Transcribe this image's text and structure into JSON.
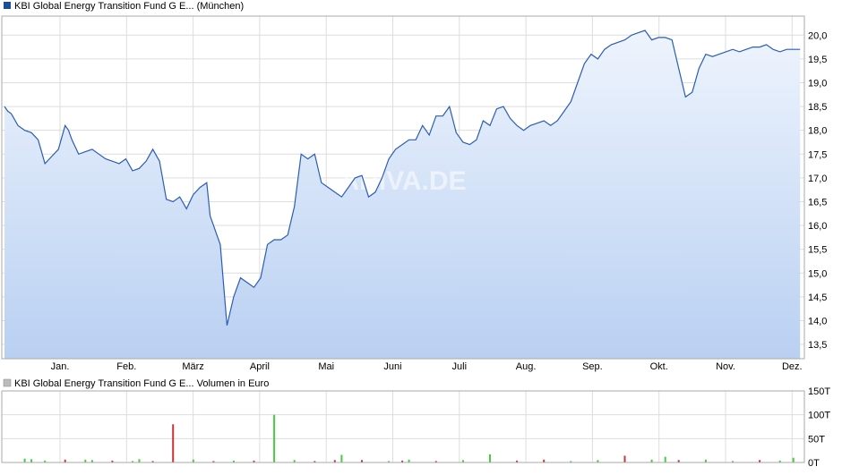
{
  "price_panel": {
    "legend_text": "KBI Global Energy Transition Fund G E... (München)",
    "legend_color": "#1f4e99",
    "watermark": "ARIVA.DE"
  },
  "volume_panel": {
    "legend_text": "KBI Global Energy Transition Fund G E... Volumen in Euro",
    "legend_color": "#bbbbbb"
  },
  "colors": {
    "line": "#2b5db5",
    "fill_top": "#eef4fd",
    "fill_bottom": "#b9d0f2",
    "grid": "#dddddd",
    "up": "#44cc44",
    "down": "#cc3333"
  },
  "chart_data": [
    {
      "type": "line",
      "x_tick_labels": [
        "Jan.",
        "Feb.",
        "März",
        "April",
        "Mai",
        "Juni",
        "Juli",
        "Aug.",
        "Sep.",
        "Okt.",
        "Nov.",
        "Dez."
      ],
      "y_tick_labels": [
        "13,5",
        "14,0",
        "14,5",
        "15,0",
        "15,5",
        "16,0",
        "16,5",
        "17,0",
        "17,5",
        "18,0",
        "18,5",
        "19,0",
        "19,5",
        "20,0"
      ],
      "ylim": [
        13.2,
        20.4
      ],
      "xlim_months": [
        0,
        11.85
      ],
      "grid": true,
      "legend": "top-left",
      "series": [
        {
          "x": [
            0.0,
            0.05,
            0.1,
            0.2,
            0.3,
            0.4,
            0.5,
            0.6,
            0.7,
            0.8,
            0.9,
            0.95,
            1.0,
            1.1,
            1.2,
            1.3,
            1.4,
            1.5,
            1.6,
            1.7,
            1.8,
            1.9,
            2.0,
            2.1,
            2.2,
            2.3,
            2.4,
            2.5,
            2.6,
            2.7,
            2.8,
            2.9,
            3.0,
            3.05,
            3.1,
            3.15,
            3.2,
            3.3,
            3.4,
            3.5,
            3.6,
            3.7,
            3.8,
            3.9,
            4.0,
            4.1,
            4.2,
            4.3,
            4.4,
            4.5,
            4.6,
            4.7,
            4.8,
            4.9,
            5.0,
            5.1,
            5.2,
            5.3,
            5.4,
            5.5,
            5.6,
            5.7,
            5.8,
            5.9,
            6.0,
            6.1,
            6.2,
            6.3,
            6.4,
            6.5,
            6.6,
            6.7,
            6.8,
            6.9,
            7.0,
            7.1,
            7.2,
            7.3,
            7.4,
            7.5,
            7.6,
            7.7,
            7.8,
            7.9,
            8.0,
            8.1,
            8.2,
            8.3,
            8.4,
            8.5,
            8.6,
            8.7,
            8.8,
            8.9,
            9.0,
            9.1,
            9.2,
            9.3,
            9.4,
            9.5,
            9.6,
            9.7,
            9.8,
            9.9,
            10.0,
            10.1,
            10.2,
            10.3,
            10.4,
            10.5,
            10.6,
            10.7,
            10.8,
            10.9,
            11.0,
            11.1,
            11.2,
            11.3,
            11.4,
            11.5,
            11.6,
            11.7,
            11.8
          ],
          "values": [
            18.5,
            18.4,
            18.35,
            18.1,
            18.0,
            17.95,
            17.8,
            17.3,
            17.45,
            17.6,
            18.1,
            18.0,
            17.8,
            17.5,
            17.55,
            17.6,
            17.5,
            17.4,
            17.35,
            17.3,
            17.4,
            17.15,
            17.2,
            17.35,
            17.6,
            17.35,
            16.55,
            16.5,
            16.6,
            16.35,
            16.65,
            16.8,
            16.9,
            16.2,
            16.0,
            15.8,
            15.6,
            13.9,
            14.5,
            14.9,
            14.8,
            14.7,
            14.9,
            15.6,
            15.7,
            15.7,
            15.8,
            16.4,
            17.5,
            17.4,
            17.5,
            16.9,
            16.8,
            16.7,
            16.6,
            16.8,
            17.0,
            17.05,
            16.6,
            16.7,
            17.0,
            17.4,
            17.6,
            17.7,
            17.8,
            17.8,
            18.1,
            17.9,
            18.3,
            18.3,
            18.5,
            17.95,
            17.75,
            17.7,
            17.8,
            18.2,
            18.1,
            18.45,
            18.5,
            18.25,
            18.1,
            18.0,
            18.1,
            18.15,
            18.2,
            18.1,
            18.2,
            18.4,
            18.6,
            19.0,
            19.4,
            19.6,
            19.5,
            19.7,
            19.8,
            19.85,
            19.9,
            20.0,
            20.05,
            20.1,
            19.9,
            19.95,
            19.95,
            19.9,
            19.3,
            18.7,
            18.8,
            19.3,
            19.6,
            19.55,
            19.6,
            19.65,
            19.7,
            19.65,
            19.7,
            19.75,
            19.75,
            19.8,
            19.7,
            19.65,
            19.7,
            19.7,
            19.7
          ]
        }
      ]
    },
    {
      "type": "bar",
      "x_tick_labels": [
        "Jan.",
        "Feb.",
        "März",
        "April",
        "Mai",
        "Juni",
        "Juli",
        "Aug.",
        "Sep.",
        "Okt.",
        "Nov.",
        "Dez."
      ],
      "y_tick_labels": [
        "150T",
        "100T",
        "50T",
        "0T"
      ],
      "ylim": [
        0,
        150
      ],
      "grid": true,
      "legend": "top-left",
      "series": [
        {
          "x": [
            0.3,
            0.6,
            0.9,
            1.3,
            1.6,
            1.9,
            2.2,
            2.5,
            2.8,
            3.1,
            3.4,
            3.7,
            4.0,
            4.3,
            4.6,
            5.0,
            5.3,
            5.7,
            6.0,
            6.4,
            6.8,
            7.2,
            7.6,
            8.0,
            8.4,
            8.8,
            9.2,
            9.6,
            10.0,
            10.4,
            10.8,
            11.2,
            11.5,
            11.7,
            2.0,
            1.2,
            5.9,
            9.8,
            4.9,
            0.4
          ],
          "values": [
            8,
            4,
            6,
            5,
            4,
            3,
            3,
            80,
            6,
            3,
            4,
            4,
            100,
            5,
            3,
            16,
            5,
            3,
            6,
            3,
            5,
            17,
            4,
            6,
            3,
            5,
            14,
            6,
            5,
            6,
            3,
            5,
            4,
            10,
            7,
            6,
            4,
            12,
            5,
            7
          ],
          "up": [
            true,
            true,
            false,
            true,
            false,
            true,
            false,
            false,
            true,
            false,
            true,
            false,
            true,
            true,
            false,
            true,
            false,
            true,
            true,
            false,
            true,
            true,
            false,
            false,
            true,
            true,
            false,
            true,
            false,
            true,
            true,
            false,
            true,
            true,
            true,
            true,
            false,
            true,
            false,
            true
          ]
        }
      ]
    }
  ]
}
